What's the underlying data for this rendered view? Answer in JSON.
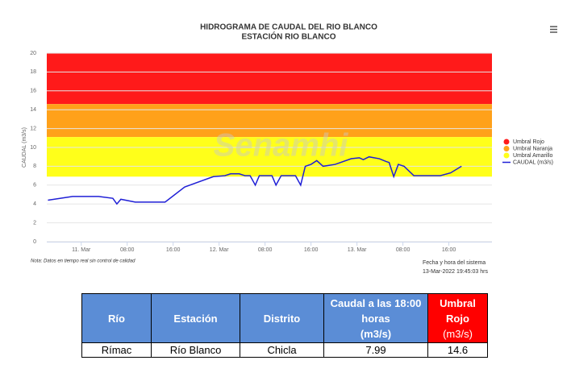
{
  "chart_data": {
    "type": "line",
    "title": [
      "HIDROGRAMA DE CAUDAL DEL RIO BLANCO",
      "ESTACIÓN RIO BLANCO"
    ],
    "y_label": "CAUDAL (m3/s)",
    "watermark": "Senamhi",
    "note": "Nota: Datos en tiempo real sin control de calidad",
    "footer": [
      "Fecha y hora del sistema",
      "13-Mar-2022 19:45:03 hrs"
    ],
    "ylim": [
      0,
      20
    ],
    "yticks": [
      0,
      2,
      4,
      6,
      8,
      10,
      12,
      14,
      16,
      18,
      20
    ],
    "xlim": [
      -6,
      71.5
    ],
    "xticks": [
      {
        "value": 0,
        "label": "11. Mar"
      },
      {
        "value": 8,
        "label": "08:00"
      },
      {
        "value": 16,
        "label": "16:00"
      },
      {
        "value": 24,
        "label": "12. Mar"
      },
      {
        "value": 32,
        "label": "08:00"
      },
      {
        "value": 40,
        "label": "16:00"
      },
      {
        "value": 48,
        "label": "13. Mar"
      },
      {
        "value": 56,
        "label": "08:00"
      },
      {
        "value": 64,
        "label": "16:00"
      }
    ],
    "grid": true,
    "thresholds": [
      {
        "name": "Umbral Rojo",
        "color": "#ff1a1a",
        "from": 14.6,
        "to": 20
      },
      {
        "name": "Umbral Naranja",
        "color": "#ffa11a",
        "from": 11.1,
        "to": 14.6
      },
      {
        "name": "Umbral Amarillo",
        "color": "#ffff1a",
        "from": 6.9,
        "to": 11.1
      }
    ],
    "x": [
      -5.8,
      -1.5,
      3,
      5.5,
      6.2,
      6.9,
      9.4,
      14.6,
      18,
      23,
      25,
      26,
      27.5,
      28.5,
      29.4,
      30.3,
      31,
      33.2,
      33.9,
      34.8,
      37.3,
      38.2,
      39,
      40,
      41,
      42.1,
      44.2,
      47,
      48.4,
      49.1,
      50.1,
      51.9,
      53.1,
      53.6,
      54.4,
      55.2,
      56.2,
      57.9,
      62.5,
      64.3,
      66.2
    ],
    "series": [
      {
        "name": "CAUDAL (m3/s)",
        "color": "#1f1fd6",
        "values": [
          4.4,
          4.8,
          4.8,
          4.6,
          4.0,
          4.5,
          4.2,
          4.2,
          5.8,
          6.9,
          7.0,
          7.2,
          7.2,
          7.0,
          7.0,
          6.0,
          7.0,
          7.0,
          6.0,
          7.0,
          7.0,
          6.0,
          8.0,
          8.2,
          8.6,
          8.0,
          8.2,
          8.8,
          8.9,
          8.7,
          9.0,
          8.8,
          8.5,
          8.4,
          6.9,
          8.2,
          8.0,
          7.0,
          7.0,
          7.3,
          8.0
        ]
      }
    ]
  },
  "table": {
    "header": [
      "Río",
      "Estación",
      "Distrito",
      [
        "Caudal a las 18:00 horas",
        "(m3/s)"
      ],
      [
        "Umbral Rojo",
        "(m3/s)"
      ]
    ],
    "rows": [
      [
        "Rímac",
        "Río Blanco",
        "Chicla",
        7.99,
        14.6
      ]
    ]
  }
}
